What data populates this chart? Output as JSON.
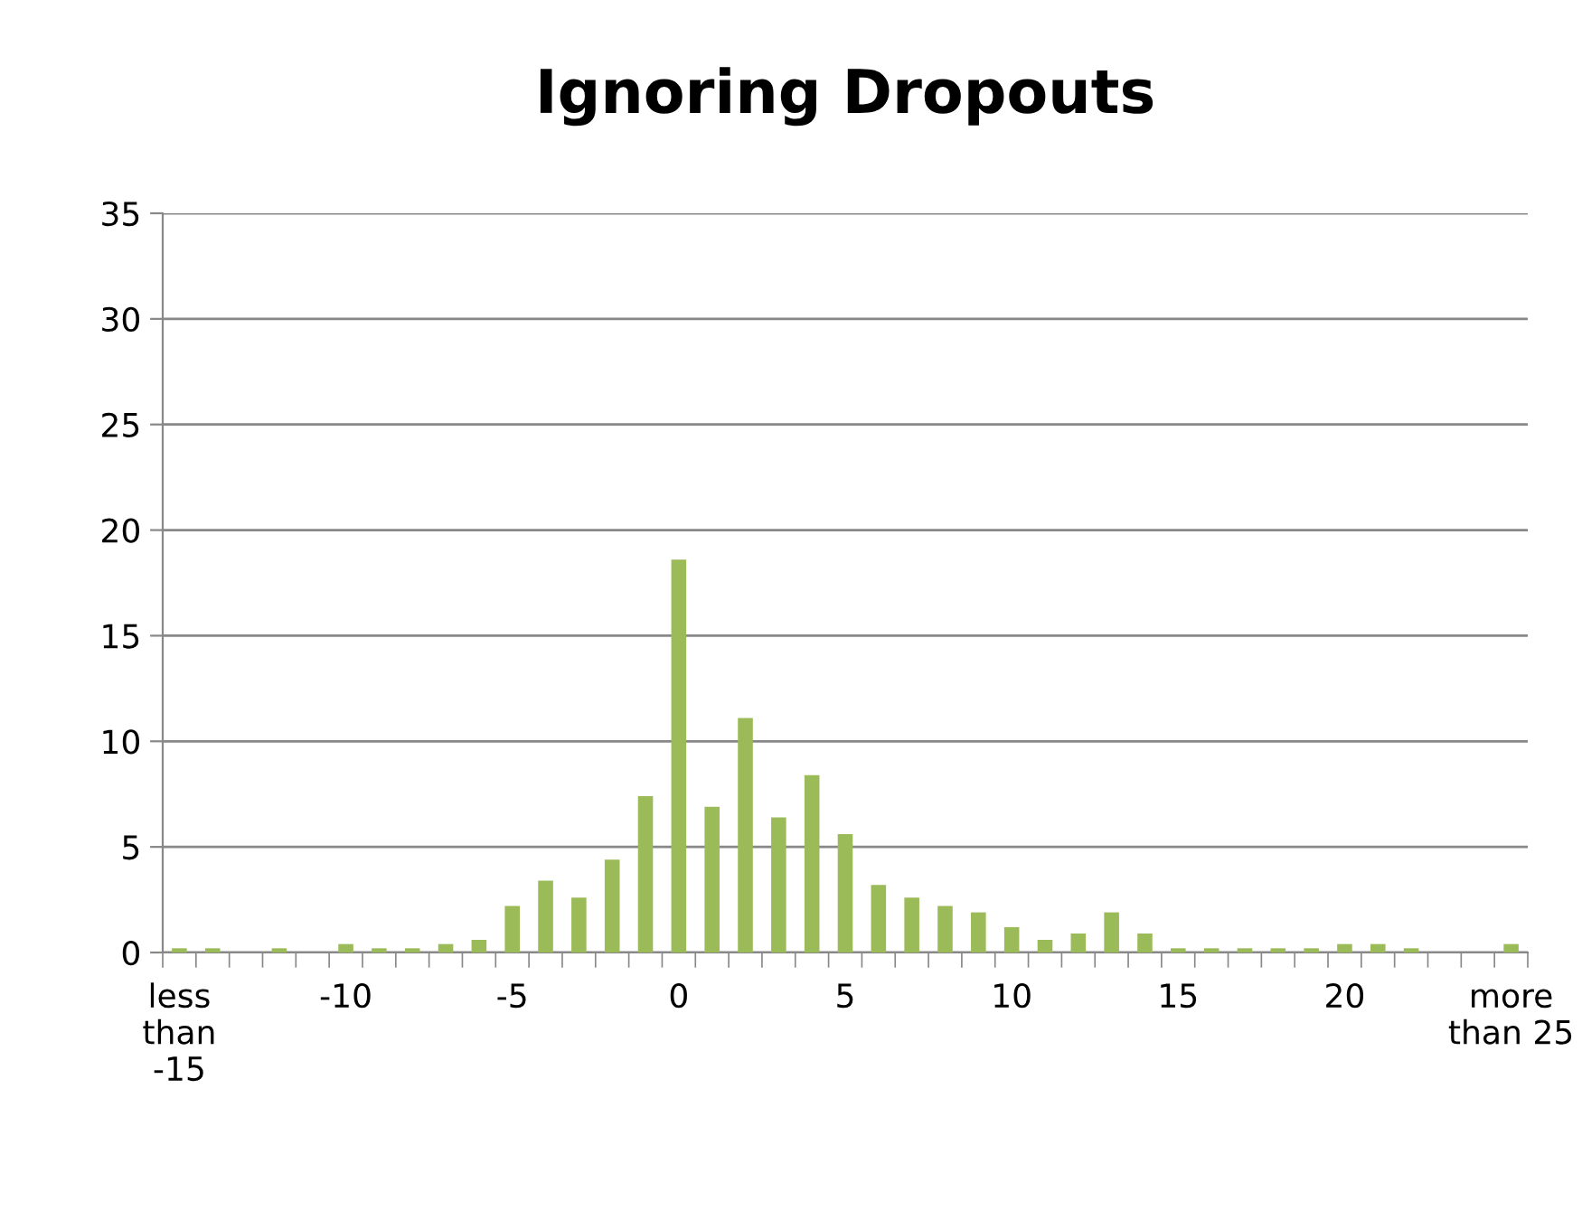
{
  "chart_data": {
    "type": "bar",
    "title": "Ignoring Dropouts",
    "categories": [
      "less\nthan\n-15",
      null,
      null,
      null,
      null,
      "-10",
      null,
      null,
      null,
      null,
      "-5",
      null,
      null,
      null,
      null,
      "0",
      null,
      null,
      null,
      null,
      "5",
      null,
      null,
      null,
      null,
      "10",
      null,
      null,
      null,
      null,
      "15",
      null,
      null,
      null,
      null,
      "20",
      null,
      null,
      null,
      null,
      "more\nthan 25"
    ],
    "values": [
      0.2,
      0.2,
      0,
      0.2,
      0,
      0.4,
      0.2,
      0.2,
      0.4,
      0.6,
      2.2,
      3.4,
      2.6,
      4.4,
      7.4,
      18.6,
      6.9,
      11.1,
      6.4,
      8.4,
      5.6,
      3.2,
      2.6,
      2.2,
      1.9,
      1.2,
      0.6,
      0.9,
      1.9,
      0.9,
      0.2,
      0.2,
      0.2,
      0.2,
      0.2,
      0.4,
      0.4,
      0.2,
      0,
      0,
      0.4
    ],
    "color": "#9bbb59",
    "ylim": [
      0,
      35
    ],
    "yticks": [
      0,
      5,
      10,
      15,
      20,
      25,
      30,
      35
    ],
    "grid": "y",
    "legend": false
  }
}
